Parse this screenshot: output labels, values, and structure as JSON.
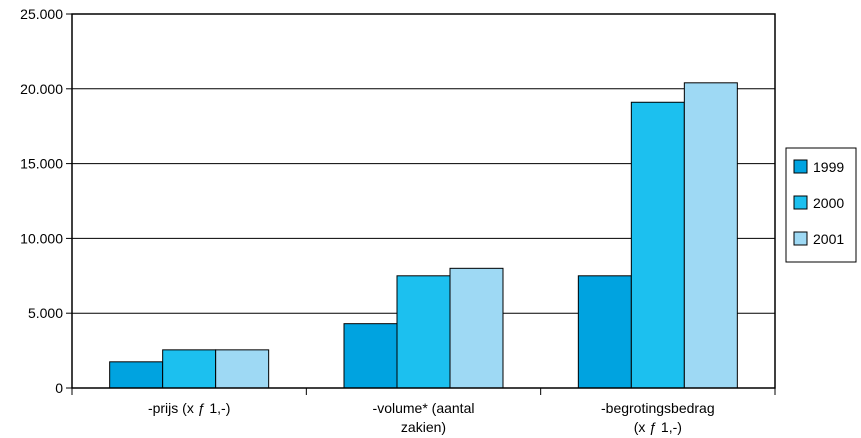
{
  "chart_data": {
    "type": "bar",
    "title": "",
    "xlabel": "",
    "ylabel": "",
    "categories": [
      [
        "-prijs (x ƒ 1,-)"
      ],
      [
        "-volume* (aantal",
        "zakien)"
      ],
      [
        "-begrotingsbedrag",
        "(x ƒ 1,-)"
      ]
    ],
    "series": [
      {
        "name": "1999",
        "color": "#00a3e0",
        "values": [
          1750,
          4300,
          7500
        ]
      },
      {
        "name": "2000",
        "color": "#1cc0ef",
        "values": [
          2550,
          7500,
          19100
        ]
      },
      {
        "name": "2001",
        "color": "#9ed9f4",
        "values": [
          2550,
          8000,
          20400
        ]
      }
    ],
    "ylim": [
      0,
      25000
    ],
    "yticks": [
      0,
      5000,
      10000,
      15000,
      20000,
      25000
    ],
    "ytick_labels": [
      "0",
      "5.000",
      "10.000",
      "15.000",
      "20.000",
      "25.000"
    ],
    "grid": true,
    "legend_position": "right"
  }
}
